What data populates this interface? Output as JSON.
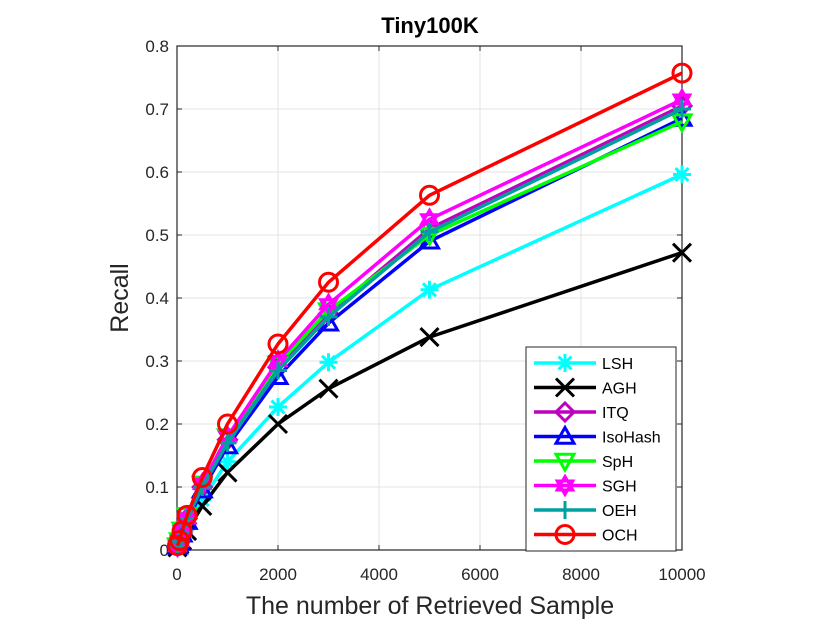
{
  "chart_data": {
    "type": "line",
    "title": "Tiny100K",
    "xlabel": "The number of Retrieved Sample",
    "ylabel": "Recall",
    "xlim": [
      0,
      10000
    ],
    "ylim": [
      0,
      0.8
    ],
    "xticks": [
      0,
      2000,
      4000,
      6000,
      8000,
      10000
    ],
    "yticks": [
      0,
      0.1,
      0.2,
      0.3,
      0.4,
      0.5,
      0.6,
      0.7,
      0.8
    ],
    "xtick_labels": [
      "0",
      "2000",
      "4000",
      "6000",
      "8000",
      "10000"
    ],
    "ytick_labels": [
      "0",
      "0.1",
      "0.2",
      "0.3",
      "0.4",
      "0.5",
      "0.6",
      "0.7",
      "0.8"
    ],
    "grid": true,
    "legend_position": "bottom-right",
    "x": [
      10,
      50,
      100,
      200,
      500,
      1000,
      2000,
      3000,
      5000,
      10000
    ],
    "series": [
      {
        "name": "LSH",
        "color": "#00ffff",
        "marker": "asterisk",
        "values": [
          0.005,
          0.01,
          0.02,
          0.04,
          0.08,
          0.14,
          0.227,
          0.298,
          0.413,
          0.596
        ]
      },
      {
        "name": "AGH",
        "color": "#000000",
        "marker": "x",
        "values": [
          0.004,
          0.009,
          0.015,
          0.03,
          0.07,
          0.123,
          0.2,
          0.256,
          0.338,
          0.472
        ]
      },
      {
        "name": "ITQ",
        "color": "#bf00bf",
        "marker": "diamond",
        "values": [
          0.006,
          0.013,
          0.027,
          0.05,
          0.1,
          0.175,
          0.29,
          0.375,
          0.51,
          0.705
        ]
      },
      {
        "name": "IsoHash",
        "color": "#0000ff",
        "marker": "triangle",
        "values": [
          0.006,
          0.012,
          0.025,
          0.045,
          0.095,
          0.165,
          0.275,
          0.36,
          0.49,
          0.685
        ]
      },
      {
        "name": "SpH",
        "color": "#00ff00",
        "marker": "triangle-down",
        "values": [
          0.007,
          0.015,
          0.032,
          0.055,
          0.105,
          0.18,
          0.295,
          0.38,
          0.5,
          0.68
        ]
      },
      {
        "name": "SGH",
        "color": "#ff00ff",
        "marker": "hexagram",
        "values": [
          0.006,
          0.014,
          0.03,
          0.05,
          0.105,
          0.18,
          0.3,
          0.39,
          0.525,
          0.715
        ]
      },
      {
        "name": "OEH",
        "color": "#00a0a0",
        "marker": "plus",
        "values": [
          0.006,
          0.013,
          0.028,
          0.05,
          0.1,
          0.17,
          0.285,
          0.37,
          0.505,
          0.7
        ]
      },
      {
        "name": "OCH",
        "color": "#ff0000",
        "marker": "circle",
        "values": [
          0.007,
          0.015,
          0.03,
          0.055,
          0.115,
          0.2,
          0.327,
          0.425,
          0.563,
          0.757
        ]
      }
    ]
  }
}
